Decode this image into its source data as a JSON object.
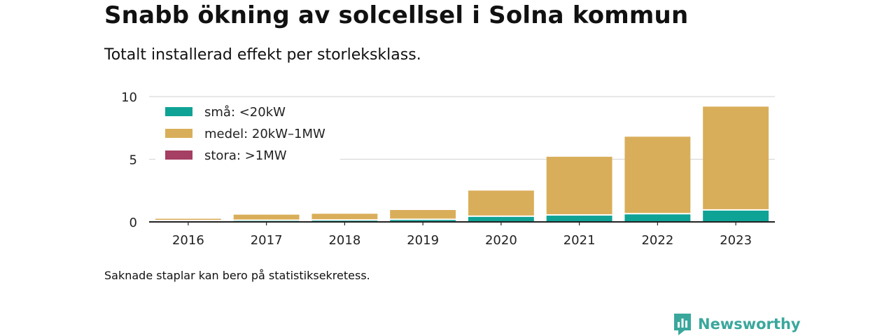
{
  "header": {
    "title": "Snabb ökning av solcellsel i Solna kommun",
    "subtitle": "Totalt installerad effekt per storleksklass."
  },
  "footer": {
    "note": "Saknade staplar kan bero på statistiksekretess.",
    "brand": "Newsworthy"
  },
  "colors": {
    "small": "#0fa396",
    "medium": "#d9ae5a",
    "large": "#a53f63",
    "grid": "#d9d9d9",
    "axis": "#222222",
    "brand": "#3aa79c"
  },
  "chart_data": {
    "type": "bar",
    "stacked": true,
    "categories": [
      "2016",
      "2017",
      "2018",
      "2019",
      "2020",
      "2021",
      "2022",
      "2023"
    ],
    "series": [
      {
        "name": "små: <20kW",
        "color": "#0fa396",
        "values": [
          0.05,
          0.08,
          0.1,
          0.15,
          0.4,
          0.5,
          0.6,
          0.9
        ]
      },
      {
        "name": "medel: 20kW–1MW",
        "color": "#d9ae5a",
        "values": [
          0.2,
          0.5,
          0.55,
          0.8,
          2.1,
          4.7,
          6.2,
          8.3
        ]
      },
      {
        "name": "stora: >1MW",
        "color": "#a53f63",
        "values": [
          0,
          0,
          0,
          0,
          0,
          0,
          0,
          0
        ]
      }
    ],
    "ylim": [
      0,
      10
    ],
    "yticks": [
      0,
      5,
      10
    ],
    "grid": true,
    "legend_position": "top-left",
    "xlabel": "",
    "ylabel": ""
  }
}
